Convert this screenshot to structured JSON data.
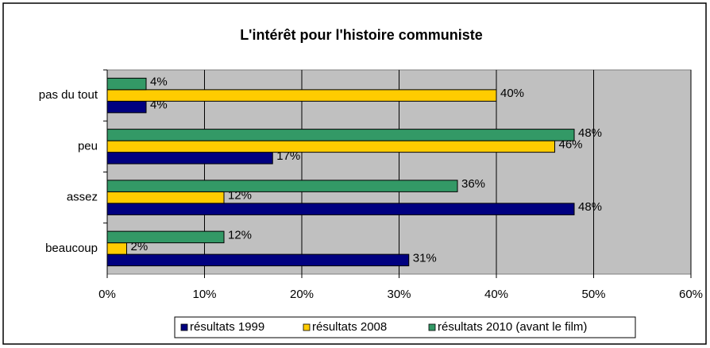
{
  "chart_data": {
    "type": "bar",
    "orientation": "horizontal",
    "title": "L'intérêt pour l'histoire communiste",
    "categories": [
      "pas du tout",
      "peu",
      "assez",
      "beaucoup"
    ],
    "series": [
      {
        "name": "résultats 1999",
        "color": "#000080",
        "values": [
          4,
          17,
          48,
          31
        ],
        "value_labels": [
          "4%",
          "17%",
          "48%",
          "31%"
        ]
      },
      {
        "name": "résultats 2008",
        "color": "#ffcc00",
        "values": [
          40,
          46,
          12,
          2
        ],
        "value_labels": [
          "40%",
          "46%",
          "12%",
          "2%"
        ]
      },
      {
        "name": "résultats 2010 (avant le film)",
        "color": "#339966",
        "values": [
          4,
          48,
          36,
          12
        ],
        "value_labels": [
          "4%",
          "48%",
          "36%",
          "12%"
        ]
      }
    ],
    "xlim": [
      0,
      60
    ],
    "xticks": [
      {
        "value": 0,
        "label": "0%"
      },
      {
        "value": 10,
        "label": "10%"
      },
      {
        "value": 20,
        "label": "20%"
      },
      {
        "value": 30,
        "label": "30%"
      },
      {
        "value": 40,
        "label": "40%"
      },
      {
        "value": 50,
        "label": "50%"
      },
      {
        "value": 60,
        "label": "60%"
      }
    ],
    "grid": true,
    "legend": "bottom"
  }
}
